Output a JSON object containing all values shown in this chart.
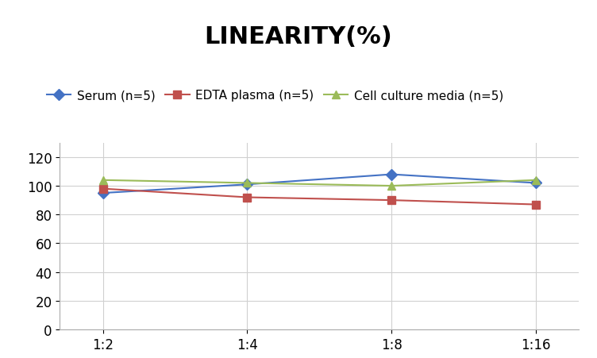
{
  "title": "LINEARITY(%)",
  "x_labels": [
    "1:2",
    "1:4",
    "1:8",
    "1:16"
  ],
  "x_positions": [
    0,
    1,
    2,
    3
  ],
  "series": [
    {
      "label": "Serum (n=5)",
      "color": "#4472C4",
      "marker": "D",
      "values": [
        95,
        101,
        108,
        102
      ]
    },
    {
      "label": "EDTA plasma (n=5)",
      "color": "#C0504D",
      "marker": "s",
      "values": [
        98,
        92,
        90,
        87
      ]
    },
    {
      "label": "Cell culture media (n=5)",
      "color": "#9BBB59",
      "marker": "^",
      "values": [
        104,
        102,
        100,
        104
      ]
    }
  ],
  "ylim": [
    0,
    130
  ],
  "yticks": [
    0,
    20,
    40,
    60,
    80,
    100,
    120
  ],
  "background_color": "#ffffff",
  "grid_color": "#d0d0d0",
  "title_fontsize": 22,
  "legend_fontsize": 11,
  "tick_fontsize": 12
}
